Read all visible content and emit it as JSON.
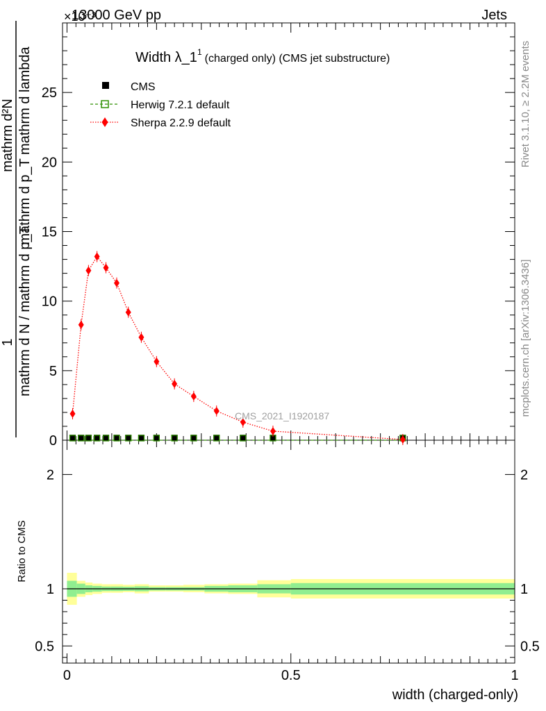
{
  "header": {
    "energy": "13000 GeV pp",
    "category": "Jets",
    "exponent": "×10⁻³",
    "watermark": "CMS_2021_I1920187",
    "rivet_label": "Rivet 3.1.10, ≥ 2.2M events",
    "mcplots_label": "mcplots.cern.ch [arXiv:1306.3436]"
  },
  "colors": {
    "cms": "#000000",
    "herwig": "#2f8f00",
    "sherpa": "#ff0000",
    "band_inner": "#90ee90",
    "band_outer": "#ffff99"
  },
  "chart_data": [
    {
      "type": "scatter",
      "title": "Width λ_1¹",
      "title_main": "Width λ_1",
      "title_sup": "1",
      "subtitle": "(charged only) (CMS jet substructure)",
      "ylabel_numerator": "1",
      "ylabel_denominator": "mathrm d N / mathrm d p_T",
      "ylabel_rhs_top": "mathrm d²N",
      "ylabel_rhs_bottom": "mathrm d p_T mathrm d lambda",
      "ylim": [
        0,
        30
      ],
      "y_scale_note": "values ×10⁻³",
      "xlim": [
        -0.01,
        1.0
      ],
      "y_ticks": [
        0,
        5,
        10,
        15,
        20,
        25
      ],
      "x": [
        0.0125,
        0.0315,
        0.048,
        0.067,
        0.087,
        0.111,
        0.137,
        0.166,
        0.2,
        0.24,
        0.283,
        0.334,
        0.393,
        0.46,
        0.75
      ],
      "series": [
        {
          "name": "CMS",
          "values": [
            0.02,
            0.02,
            0.02,
            0.02,
            0.02,
            0.02,
            0.02,
            0.02,
            0.02,
            0.02,
            0.02,
            0.02,
            0.02,
            0.02,
            0.02
          ]
        },
        {
          "name": "Herwig 7.2.1 default",
          "values": [
            0.0,
            0.0,
            0.0,
            0.0,
            0.0,
            0.0,
            0.0,
            0.0,
            0.0,
            0.0,
            0.0,
            0.0,
            0.0,
            0.0,
            0.0
          ]
        },
        {
          "name": "Sherpa 2.2.9 default",
          "values": [
            1.9,
            8.3,
            12.2,
            13.2,
            12.4,
            11.3,
            9.2,
            7.4,
            5.65,
            4.05,
            3.15,
            2.1,
            1.3,
            0.65,
            0.05
          ]
        }
      ],
      "legend_position": "top-left"
    },
    {
      "type": "area",
      "ylabel": "Ratio to CMS",
      "xlabel": "width (charged-only)",
      "ylim": [
        0.35,
        2.3
      ],
      "xlim": [
        -0.01,
        1.0
      ],
      "y_ticks": [
        0.5,
        1,
        2
      ],
      "x_ticks": [
        0,
        0.5,
        1
      ],
      "bin_edges": [
        0.0,
        0.022,
        0.041,
        0.057,
        0.078,
        0.098,
        0.125,
        0.151,
        0.183,
        0.22,
        0.26,
        0.307,
        0.36,
        0.425,
        0.5,
        1.0
      ],
      "band_inner_lo": [
        0.93,
        0.955,
        0.97,
        0.975,
        0.98,
        0.98,
        0.982,
        0.978,
        0.985,
        0.985,
        0.985,
        0.975,
        0.97,
        0.96,
        0.95
      ],
      "band_inner_hi": [
        1.07,
        1.045,
        1.03,
        1.025,
        1.02,
        1.02,
        1.018,
        1.022,
        1.015,
        1.015,
        1.015,
        1.025,
        1.03,
        1.04,
        1.05
      ],
      "band_outer_lo": [
        0.86,
        0.93,
        0.945,
        0.955,
        0.965,
        0.965,
        0.97,
        0.96,
        0.975,
        0.975,
        0.97,
        0.96,
        0.955,
        0.925,
        0.915
      ],
      "band_outer_hi": [
        1.14,
        1.07,
        1.055,
        1.045,
        1.04,
        1.04,
        1.035,
        1.04,
        1.03,
        1.03,
        1.035,
        1.04,
        1.045,
        1.075,
        1.085
      ],
      "reference": 1
    }
  ]
}
